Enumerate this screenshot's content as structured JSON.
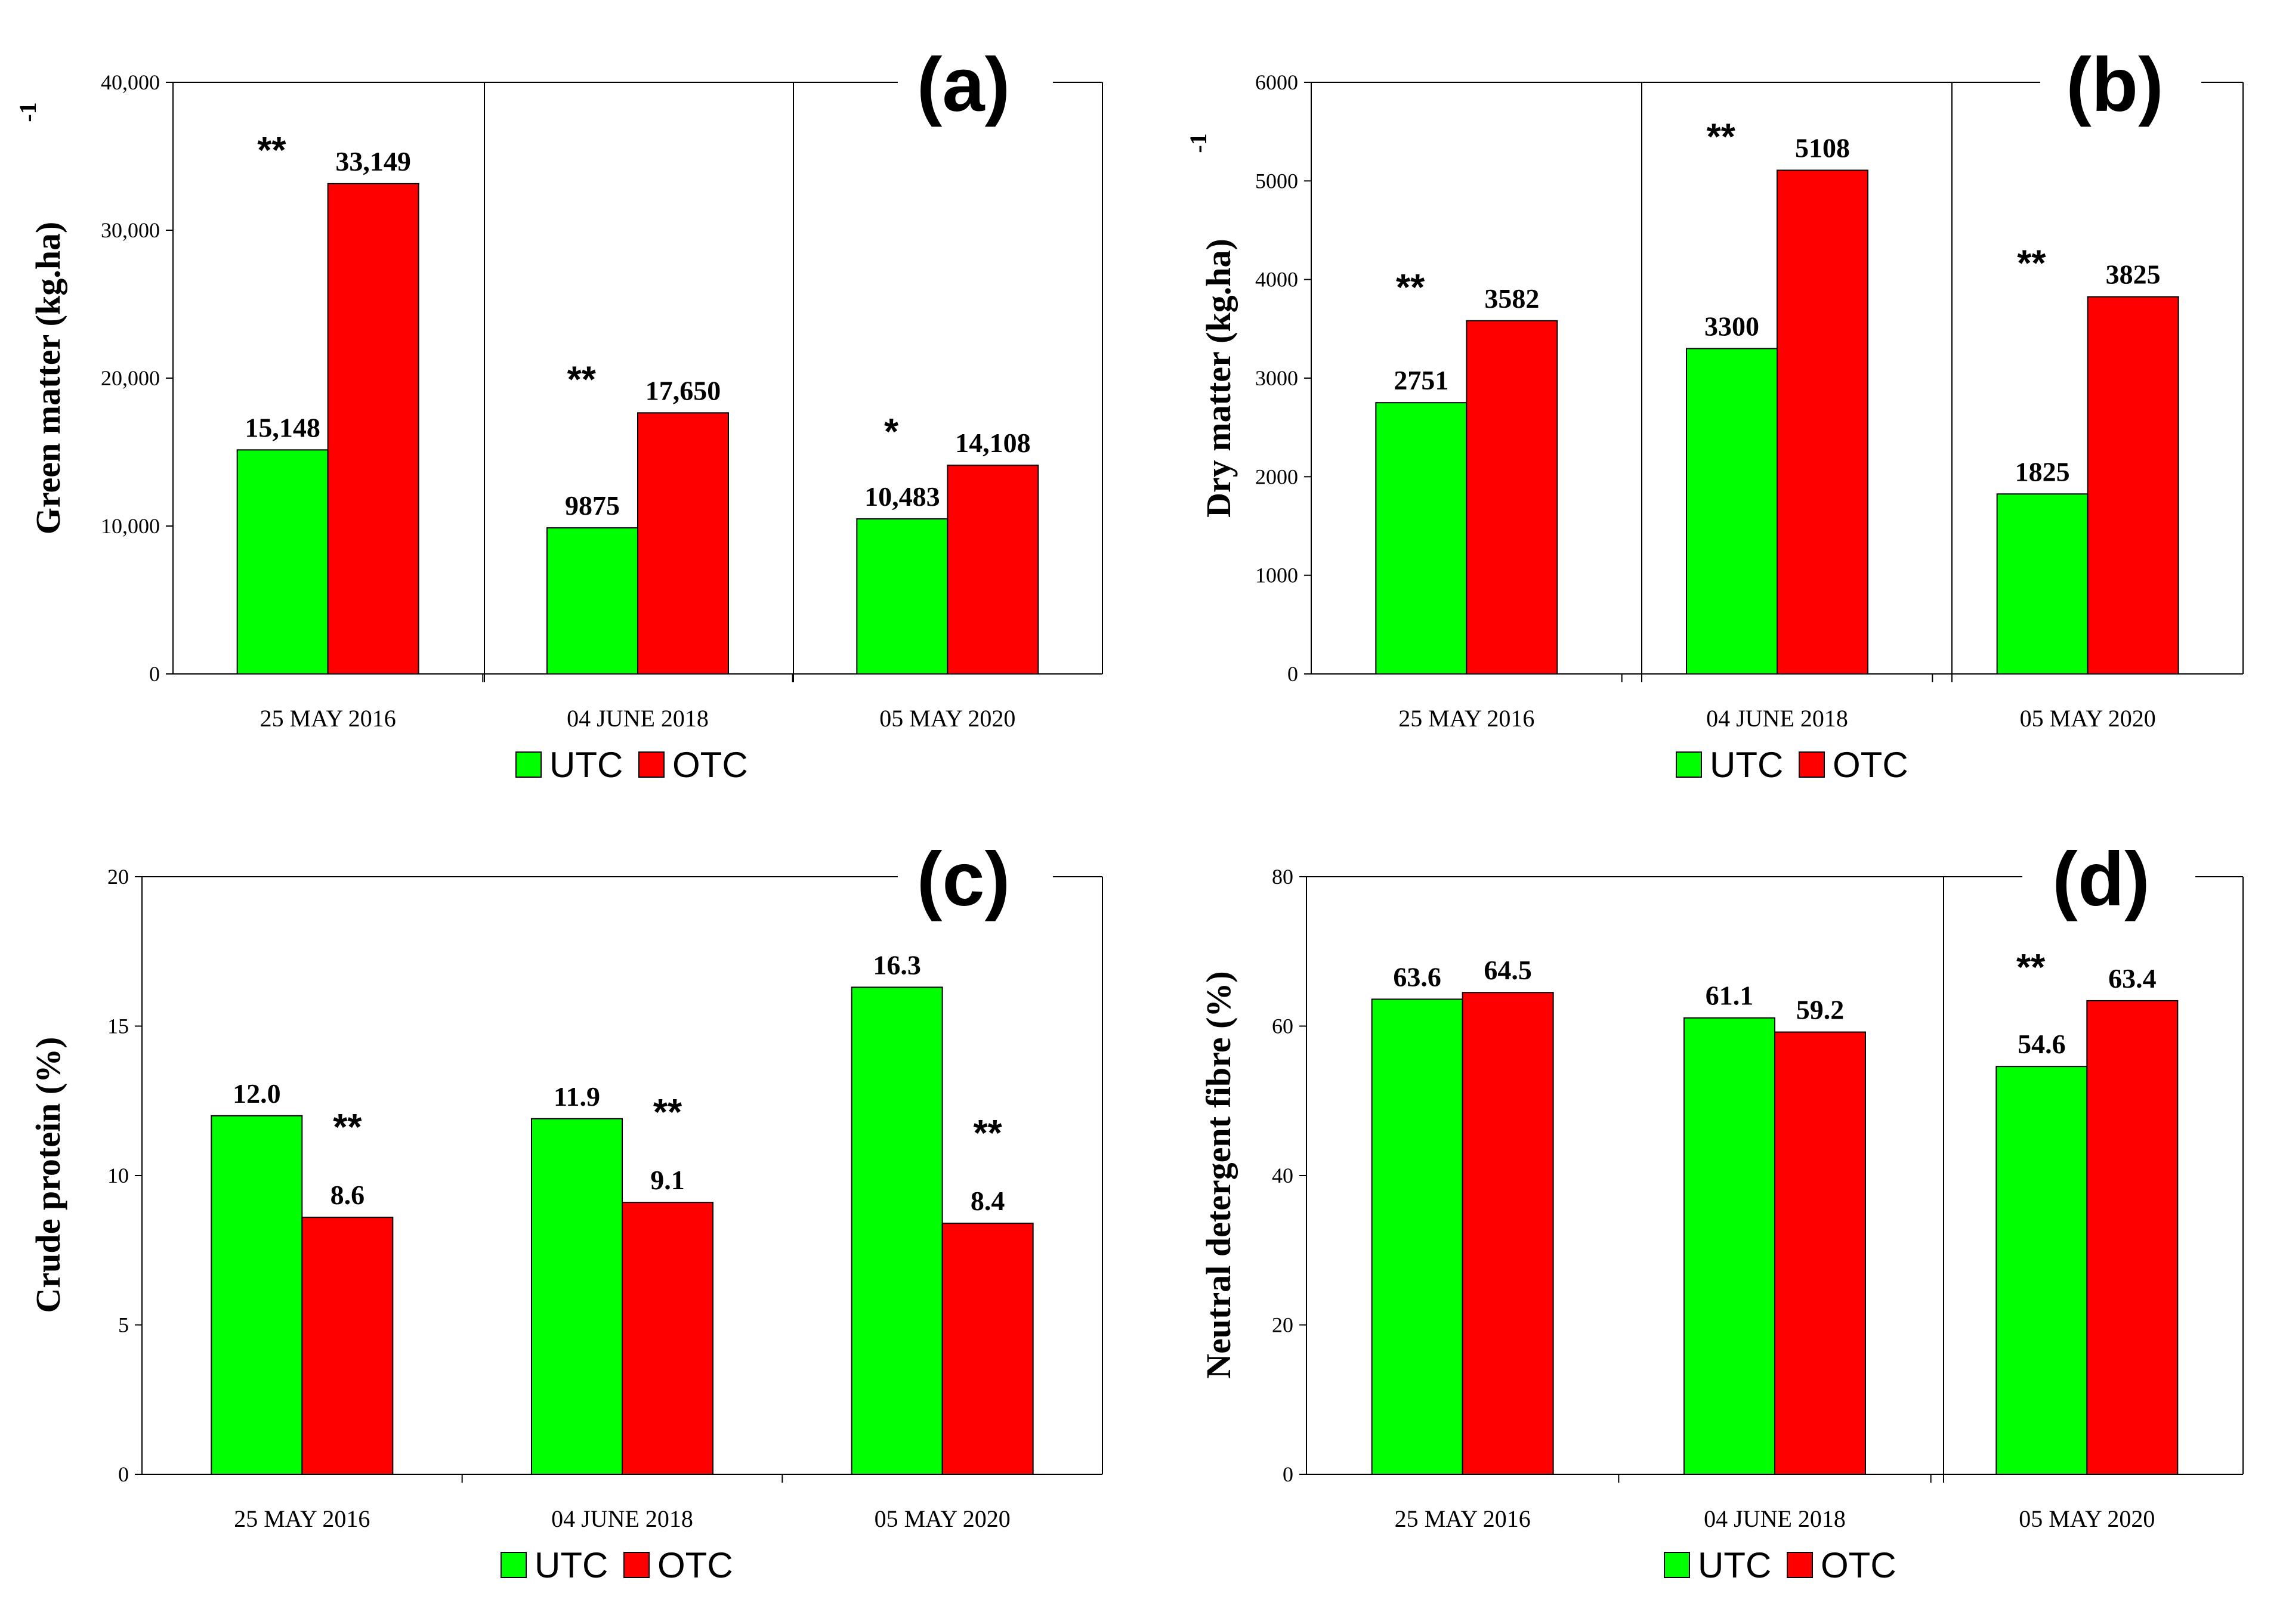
{
  "colors": {
    "UTC": "#00ff00",
    "OTC": "#ff0000"
  },
  "legend": [
    {
      "name": "UTC",
      "color": "#00ff00"
    },
    {
      "name": "OTC",
      "color": "#ff0000"
    }
  ],
  "chart_data": [
    {
      "id": "a",
      "type": "bar",
      "panel_label": "(a)",
      "ylabel": "Green matter (kg.ha",
      "ylabel_superscript": "-1",
      "ylabel_close": ")",
      "ylim": [
        0,
        40000
      ],
      "yticks": [
        0,
        10000,
        20000,
        30000,
        40000
      ],
      "ytick_labels": [
        "0",
        "10,000",
        "20,000",
        "30,000",
        "40,000"
      ],
      "categories": [
        "25 MAY 2016",
        "04 JUNE 2018",
        "05 MAY 2020"
      ],
      "series": [
        {
          "name": "UTC",
          "values": [
            15148,
            9875,
            10483
          ],
          "labels": [
            "15,148",
            "9875",
            "10,483"
          ]
        },
        {
          "name": "OTC",
          "values": [
            33149,
            17650,
            14108
          ],
          "labels": [
            "33,149",
            "17,650",
            "14,108"
          ]
        }
      ],
      "significance": [
        "**",
        "**",
        "*"
      ],
      "significance_pos": [
        "left",
        "left",
        "left"
      ]
    },
    {
      "id": "b",
      "type": "bar",
      "panel_label": "(b)",
      "ylabel": "Dry matter (kg.ha",
      "ylabel_superscript": "-1",
      "ylabel_close": ")",
      "ylim": [
        0,
        6000
      ],
      "yticks": [
        0,
        1000,
        2000,
        3000,
        4000,
        5000,
        6000
      ],
      "ytick_labels": [
        "0",
        "1000",
        "2000",
        "3000",
        "4000",
        "5000",
        "6000"
      ],
      "categories": [
        "25 MAY 2016",
        "04 JUNE 2018",
        "05 MAY 2020"
      ],
      "series": [
        {
          "name": "UTC",
          "values": [
            2751,
            3300,
            1825
          ],
          "labels": [
            "2751",
            "3300",
            "1825"
          ]
        },
        {
          "name": "OTC",
          "values": [
            3582,
            5108,
            3825
          ],
          "labels": [
            "3582",
            "5108",
            "3825"
          ]
        }
      ],
      "significance": [
        "**",
        "**",
        "**"
      ],
      "significance_pos": [
        "left",
        "left",
        "left"
      ]
    },
    {
      "id": "c",
      "type": "bar",
      "panel_label": "(c)",
      "ylabel": "Crude protein (%)",
      "ylabel_superscript": "",
      "ylabel_close": "",
      "ylim": [
        0,
        20
      ],
      "yticks": [
        0,
        5,
        10,
        15,
        20
      ],
      "ytick_labels": [
        "0",
        "5",
        "10",
        "15",
        "20"
      ],
      "categories": [
        "25 MAY 2016",
        "04 JUNE 2018",
        "05 MAY 2020"
      ],
      "series": [
        {
          "name": "UTC",
          "values": [
            12.0,
            11.9,
            16.3
          ],
          "labels": [
            "12.0",
            "11.9",
            "16.3"
          ]
        },
        {
          "name": "OTC",
          "values": [
            8.6,
            9.1,
            8.4
          ],
          "labels": [
            "8.6",
            "9.1",
            "8.4"
          ]
        }
      ],
      "significance": [
        "**",
        "**",
        "**"
      ],
      "significance_pos": [
        "right",
        "right",
        "right"
      ]
    },
    {
      "id": "d",
      "type": "bar",
      "panel_label": "(d)",
      "ylabel": "Neutral detergent  fibre (%)",
      "ylabel_superscript": "",
      "ylabel_close": "",
      "ylim": [
        0,
        80
      ],
      "yticks": [
        0,
        20,
        40,
        60,
        80
      ],
      "ytick_labels": [
        "0",
        "20",
        "40",
        "60",
        "80"
      ],
      "categories": [
        "25 MAY 2016",
        "04 JUNE 2018",
        "05 MAY 2020"
      ],
      "series": [
        {
          "name": "UTC",
          "values": [
            63.6,
            61.1,
            54.6
          ],
          "labels": [
            "63.6",
            "61.1",
            "54.6"
          ]
        },
        {
          "name": "OTC",
          "values": [
            64.5,
            59.2,
            63.4
          ],
          "labels": [
            "64.5",
            "59.2",
            "63.4"
          ]
        }
      ],
      "significance": [
        "",
        "",
        "**"
      ],
      "significance_pos": [
        "left",
        "left",
        "left"
      ]
    }
  ]
}
